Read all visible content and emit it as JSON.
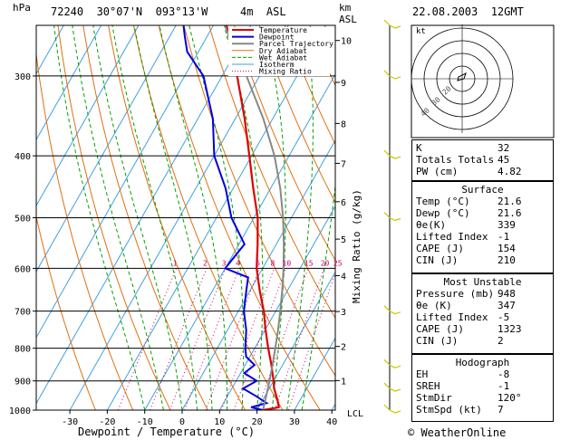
{
  "header": {
    "hpa_unit": "hPa",
    "station": "72240  30°07'N  093°13'W",
    "elevation": "4m  ASL",
    "km_unit": "km",
    "km_sub": "ASL",
    "datetime": "22.08.2003  12GMT"
  },
  "legend": [
    "Temperature",
    "Dewpoint",
    "Parcel Trajectory",
    "Dry Adiabat",
    "Wet Adiabat",
    "Isotherm",
    "Mixing Ratio"
  ],
  "colors": {
    "temperature": "#dd0000",
    "dewpoint": "#0000dd",
    "parcel": "#888888",
    "dry_adiabat": "#e07010",
    "wet_adiabat": "#00a000",
    "isotherm": "#40a0e0",
    "mixing_ratio": "#cc0066",
    "wind": "#c8c800"
  },
  "mixing_ratio_label": "Mixing Ratio (g/kg)",
  "lcl_label": "LCL",
  "hodograph": {
    "unit": "kt",
    "ring_labels": [
      "40",
      "30",
      "20"
    ]
  },
  "footer": {
    "copyright": "© WeatherOnline"
  },
  "indices": [
    {
      "label": "K",
      "value": "32"
    },
    {
      "label": "Totals Totals",
      "value": "45"
    },
    {
      "label": "PW (cm)",
      "value": "4.82"
    }
  ],
  "surface": {
    "title": "Surface",
    "rows": [
      {
        "label": "Temp (°C)",
        "value": "21.6"
      },
      {
        "label": "Dewp (°C)",
        "value": "21.6"
      },
      {
        "label": "θe(K)",
        "value": "339"
      },
      {
        "label": "Lifted Index",
        "value": "-1"
      },
      {
        "label": "CAPE (J)",
        "value": "154"
      },
      {
        "label": "CIN (J)",
        "value": "210"
      }
    ]
  },
  "most_unstable": {
    "title": "Most Unstable",
    "rows": [
      {
        "label": "Pressure (mb)",
        "value": "948"
      },
      {
        "label": "θe (K)",
        "value": "347"
      },
      {
        "label": "Lifted Index",
        "value": "-5"
      },
      {
        "label": "CAPE (J)",
        "value": "1323"
      },
      {
        "label": "CIN (J)",
        "value": "2"
      }
    ]
  },
  "hodograph_table": {
    "title": "Hodograph",
    "rows": [
      {
        "label": "EH",
        "value": "-8"
      },
      {
        "label": "SREH",
        "value": "-1"
      },
      {
        "label": "StmDir",
        "value": "120°"
      },
      {
        "label": "StmSpd (kt)",
        "value": "7"
      }
    ]
  },
  "chart_data": {
    "type": "line",
    "subtype": "skew-T log-P diagram",
    "xlabel": "Dewpoint / Temperature (°C)",
    "ylabel_left": "hPa",
    "ylabel_right": "Mixing Ratio (g/kg)",
    "x_ticks": [
      -30,
      -20,
      -10,
      0,
      10,
      20,
      30,
      40
    ],
    "p_ticks": [
      300,
      400,
      500,
      600,
      700,
      800,
      900,
      1000
    ],
    "p_range": [
      1000,
      250
    ],
    "x_range": [
      -36,
      40
    ],
    "km_ticks": [
      "1",
      "2",
      "3",
      "4",
      "5",
      "6",
      "7",
      "8",
      "9",
      "10"
    ],
    "mixing_ratio_labels": [
      "1",
      "2",
      "3",
      "4",
      "6",
      "8",
      "10",
      "15",
      "20",
      "25"
    ],
    "mixing_ratio_values": [
      1,
      2,
      3,
      4,
      6,
      8,
      10,
      15,
      20,
      25
    ],
    "dry_adiabats_K": [
      250,
      260,
      270,
      280,
      290,
      300,
      310,
      320,
      330,
      340,
      350,
      360,
      370,
      380,
      390,
      400,
      410,
      420,
      430,
      440
    ],
    "wet_adiabats_C": [
      -10,
      -5,
      0,
      4,
      8,
      12,
      16,
      20,
      24,
      28,
      32
    ],
    "isotherms_C": [
      -110,
      -100,
      -90,
      -80,
      -70,
      -60,
      -50,
      -40,
      -30,
      -20,
      -10,
      0,
      10,
      20,
      30,
      40
    ],
    "series": [
      {
        "name": "Temperature",
        "points": [
          [
            1000,
            21.6
          ],
          [
            990,
            25.4
          ],
          [
            975,
            24.6
          ],
          [
            950,
            23
          ],
          [
            925,
            21.3
          ],
          [
            900,
            20
          ],
          [
            850,
            17
          ],
          [
            800,
            13.6
          ],
          [
            750,
            10.2
          ],
          [
            700,
            6.8
          ],
          [
            650,
            2.6
          ],
          [
            600,
            -1.6
          ],
          [
            550,
            -5
          ],
          [
            500,
            -9
          ],
          [
            450,
            -14.6
          ],
          [
            400,
            -20.6
          ],
          [
            350,
            -27.5
          ],
          [
            300,
            -36
          ],
          [
            250,
            -46.5
          ]
        ]
      },
      {
        "name": "Dewpoint",
        "points": [
          [
            1000,
            21.6
          ],
          [
            990,
            18
          ],
          [
            975,
            21.5
          ],
          [
            950,
            17.5
          ],
          [
            925,
            13
          ],
          [
            900,
            15.5
          ],
          [
            875,
            11
          ],
          [
            850,
            12.5
          ],
          [
            825,
            9
          ],
          [
            800,
            7.5
          ],
          [
            750,
            5
          ],
          [
            700,
            1.5
          ],
          [
            650,
            -1
          ],
          [
            620,
            -2.5
          ],
          [
            600,
            -10
          ],
          [
            550,
            -8.5
          ],
          [
            500,
            -16
          ],
          [
            450,
            -22
          ],
          [
            400,
            -30
          ],
          [
            350,
            -36
          ],
          [
            300,
            -45
          ],
          [
            275,
            -53
          ],
          [
            260,
            -56
          ],
          [
            250,
            -58
          ]
        ]
      },
      {
        "name": "Parcel Trajectory",
        "points": [
          [
            1000,
            21.6
          ],
          [
            950,
            20.3
          ],
          [
            900,
            18.9
          ],
          [
            850,
            17.3
          ],
          [
            800,
            15.5
          ],
          [
            750,
            13.5
          ],
          [
            700,
            11.2
          ],
          [
            650,
            8.6
          ],
          [
            600,
            5.6
          ],
          [
            550,
            2
          ],
          [
            500,
            -2.2
          ],
          [
            450,
            -7.4
          ],
          [
            400,
            -13.9
          ],
          [
            350,
            -22.5
          ],
          [
            300,
            -33.5
          ],
          [
            250,
            -47
          ]
        ]
      }
    ],
    "wind_levels_hpa": [
      1000,
      925,
      850,
      700,
      500,
      400,
      300,
      250
    ]
  }
}
